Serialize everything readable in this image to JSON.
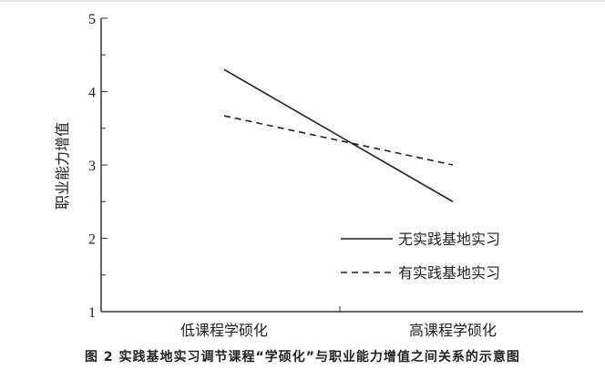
{
  "caption": "图 2   实践基地实习调节课程“学硕化”与职业能力增值之间关系的示意图",
  "chart_data": {
    "type": "line",
    "title": "",
    "xlabel": "",
    "ylabel": "职业能力增值",
    "categories": [
      "低课程学硕化",
      "高课程学硕化"
    ],
    "ylim": [
      1,
      5
    ],
    "yticks": [
      1,
      2,
      3,
      4,
      5
    ],
    "grid": false,
    "legend_position": "bottom-right",
    "series": [
      {
        "name": "无实践基地实习",
        "values": [
          4.3,
          2.5
        ],
        "style": "solid",
        "color": "#222222"
      },
      {
        "name": "有实践基地实习",
        "values": [
          3.67,
          3.0
        ],
        "style": "dashed",
        "color": "#222222"
      }
    ]
  }
}
